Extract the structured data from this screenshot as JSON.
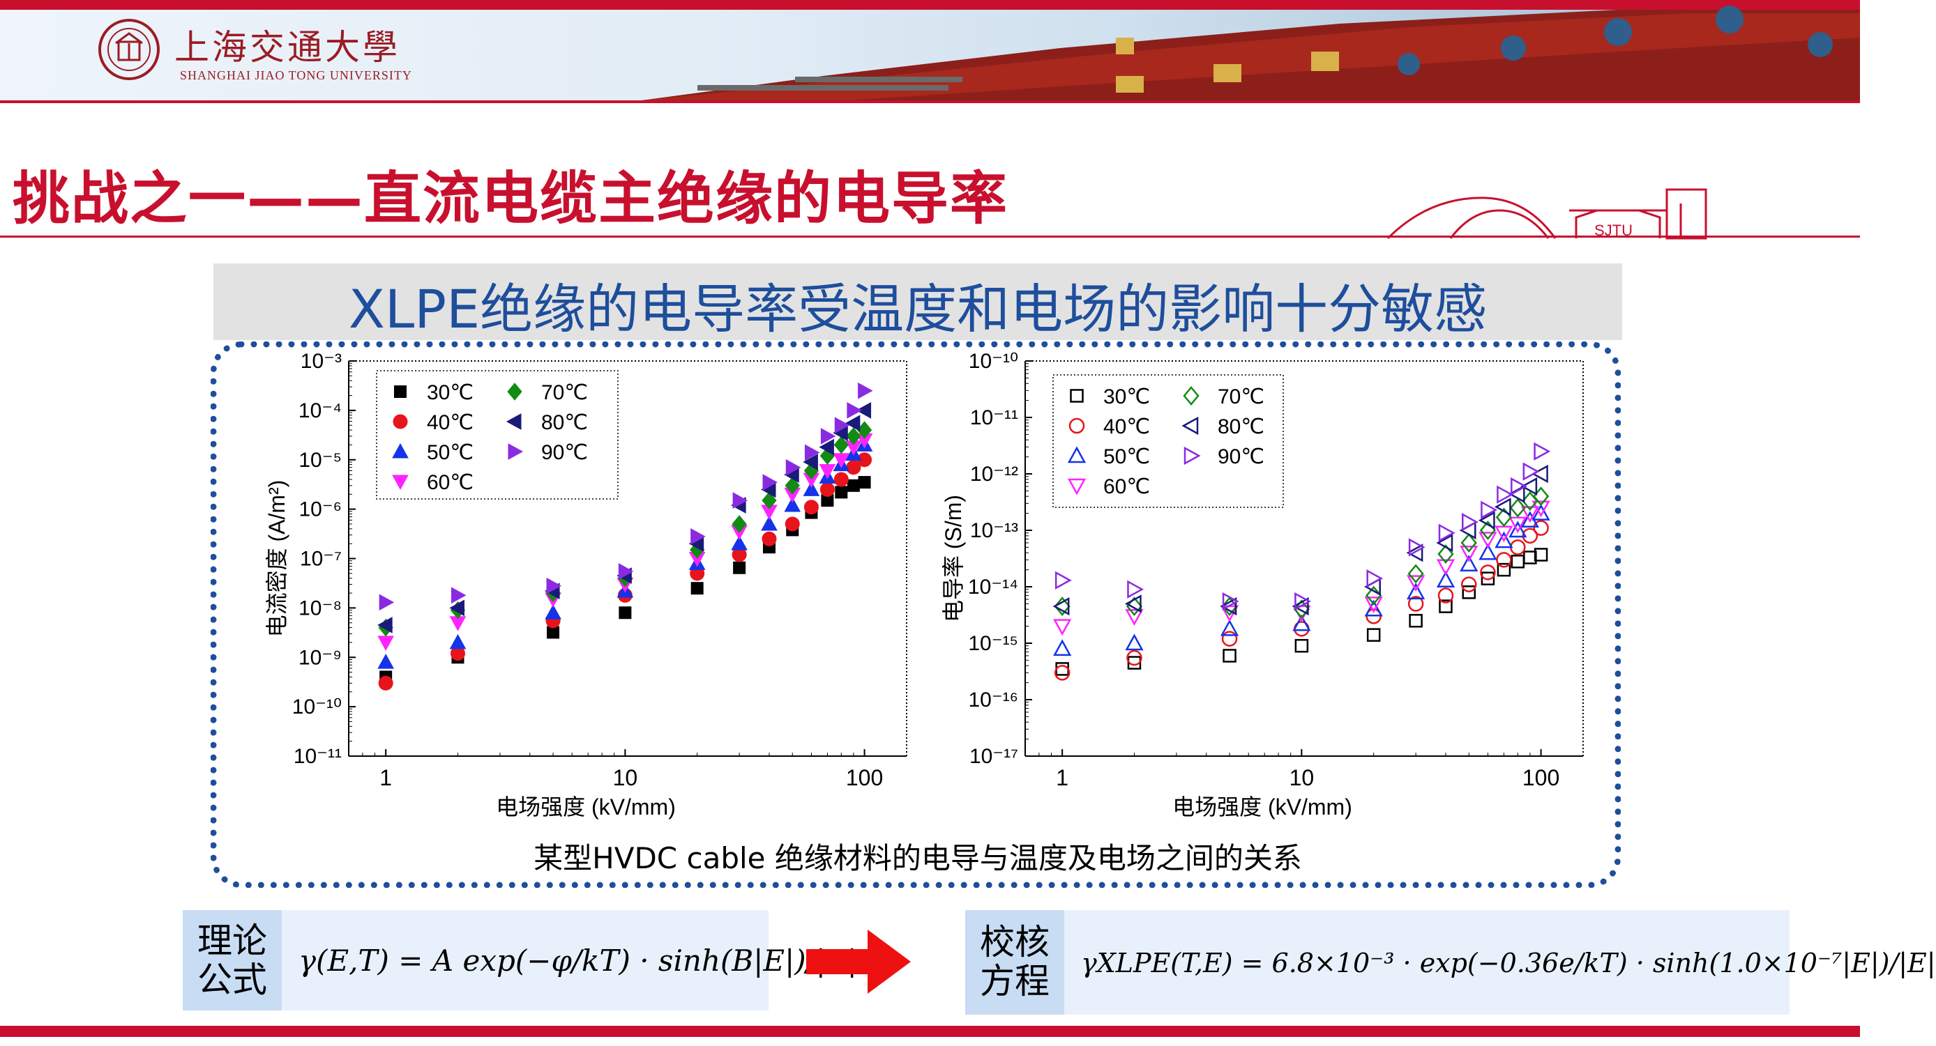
{
  "header": {
    "university_cn": "上海交通大學",
    "university_en": "SHANGHAI JIAO TONG UNIVERSITY",
    "gate_label": "SJTU"
  },
  "slide": {
    "title": "挑战之一——直流电缆主绝缘的电导率",
    "subtitle": "XLPE绝缘的电导率受温度和电场的影响十分敏感",
    "caption": "某型HVDC cable 绝缘材料的电导与温度及电场之间的关系"
  },
  "formulas": {
    "theory_label": "理论公式",
    "theory": "γ(E,T) = A exp(−φ/kT) · sinh(B|E|)/|E|",
    "fit_label": "校核方程",
    "fit": "γXLPE(T,E) = 6.8×10⁻³ · exp(−0.36e/kT) · sinh(1.0×10⁻⁷|E|)/|E|"
  },
  "colors": {
    "accent_red": "#c8102e",
    "accent_blue": "#1e4e9c"
  },
  "chart_data": [
    {
      "type": "scatter",
      "title": "",
      "xlabel": "电场强度 (kV/mm)",
      "ylabel": "电流密度 (A/m²)",
      "xscale": "log",
      "yscale": "log",
      "xlim": [
        0.7,
        150
      ],
      "ylim": [
        1e-11,
        0.001
      ],
      "xticks": [
        "1",
        "10",
        "100"
      ],
      "yticks": [
        "10⁻¹¹",
        "10⁻¹⁰",
        "10⁻⁹",
        "10⁻⁸",
        "10⁻⁷",
        "10⁻⁶",
        "10⁻⁵",
        "10⁻⁴",
        "10⁻³"
      ],
      "legend": "top-left",
      "filled": true,
      "x": [
        1,
        2,
        5,
        10,
        20,
        30,
        40,
        50,
        60,
        70,
        80,
        90,
        100
      ],
      "series": [
        {
          "name": "30℃",
          "color": "#000000",
          "marker": "square",
          "values": [
            4e-10,
            1e-09,
            3.2e-09,
            8e-09,
            2.5e-08,
            6.5e-08,
            1.7e-07,
            3.8e-07,
            8.5e-07,
            1.5e-06,
            2.2e-06,
            3e-06,
            3.5e-06
          ]
        },
        {
          "name": "40℃",
          "color": "#e8141b",
          "marker": "circle",
          "values": [
            3e-10,
            1.2e-09,
            5.5e-09,
            1.8e-08,
            5e-08,
            1.2e-07,
            2.5e-07,
            5e-07,
            1.1e-06,
            2.5e-06,
            4e-06,
            7e-06,
            1e-05
          ]
        },
        {
          "name": "50℃",
          "color": "#1533e8",
          "marker": "triangle-up",
          "values": [
            8e-10,
            2e-09,
            8e-09,
            2.2e-08,
            8e-08,
            2e-07,
            5e-07,
            1.2e-06,
            2.5e-06,
            4.5e-06,
            8e-06,
            1.3e-05,
            2e-05
          ]
        },
        {
          "name": "60℃",
          "color": "#ff24ff",
          "marker": "triangle-down",
          "values": [
            2e-09,
            5e-09,
            1.5e-08,
            3e-08,
            1e-07,
            3.5e-07,
            9e-07,
            2e-06,
            4e-06,
            6e-06,
            1e-05,
            1.8e-05,
            2.5e-05
          ]
        },
        {
          "name": "70℃",
          "color": "#138a13",
          "marker": "diamond",
          "values": [
            4e-09,
            9e-09,
            2e-08,
            4e-08,
            1.5e-07,
            5e-07,
            1.5e-06,
            3e-06,
            6e-06,
            1.2e-05,
            2e-05,
            3e-05,
            4e-05
          ]
        },
        {
          "name": "80℃",
          "color": "#1a1a7a",
          "marker": "triangle-left",
          "values": [
            4.5e-09,
            1e-08,
            2.2e-08,
            4.5e-08,
            2e-07,
            1.2e-06,
            2.5e-06,
            5e-06,
            9e-06,
            1.8e-05,
            3.5e-05,
            5.5e-05,
            0.0001
          ]
        },
        {
          "name": "90℃",
          "color": "#8a2be2",
          "marker": "triangle-right",
          "values": [
            1.3e-08,
            1.8e-08,
            2.8e-08,
            5.5e-08,
            2.8e-07,
            1.5e-06,
            3.5e-06,
            7e-06,
            1.4e-05,
            3e-05,
            5e-05,
            0.0001,
            0.00025
          ]
        }
      ]
    },
    {
      "type": "scatter",
      "title": "",
      "xlabel": "电场强度 (kV/mm)",
      "ylabel": "电导率 (S/m)",
      "xscale": "log",
      "yscale": "log",
      "xlim": [
        0.7,
        150
      ],
      "ylim": [
        1e-17,
        1e-10
      ],
      "xticks": [
        "1",
        "10",
        "100"
      ],
      "yticks": [
        "10⁻¹⁷",
        "10⁻¹⁶",
        "10⁻¹⁵",
        "10⁻¹⁴",
        "10⁻¹³",
        "10⁻¹²",
        "10⁻¹¹",
        "10⁻¹⁰"
      ],
      "legend": "top-left",
      "filled": false,
      "x": [
        1,
        2,
        5,
        10,
        20,
        30,
        40,
        50,
        60,
        70,
        80,
        90,
        100
      ],
      "series": [
        {
          "name": "30℃",
          "color": "#000000",
          "marker": "square",
          "values": [
            3.5e-16,
            4.5e-16,
            6e-16,
            9e-16,
            1.4e-15,
            2.5e-15,
            4.5e-15,
            8e-15,
            1.4e-14,
            2e-14,
            2.8e-14,
            3.3e-14,
            3.7e-14
          ]
        },
        {
          "name": "40℃",
          "color": "#e8141b",
          "marker": "circle",
          "values": [
            3e-16,
            5.5e-16,
            1.2e-15,
            1.8e-15,
            3e-15,
            5e-15,
            7e-15,
            1.1e-14,
            1.8e-14,
            3e-14,
            5e-14,
            8e-14,
            1.1e-13
          ]
        },
        {
          "name": "50℃",
          "color": "#1533e8",
          "marker": "triangle-up",
          "values": [
            8e-16,
            1e-15,
            1.8e-15,
            2.2e-15,
            4e-15,
            8e-15,
            1.3e-14,
            2.5e-14,
            4e-14,
            6.5e-14,
            1e-13,
            1.5e-13,
            2e-13
          ]
        },
        {
          "name": "60℃",
          "color": "#ff24ff",
          "marker": "triangle-down",
          "values": [
            2e-15,
            3e-15,
            3.5e-15,
            3.5e-15,
            5e-15,
            1.2e-14,
            2.3e-14,
            4e-14,
            7e-14,
            9e-14,
            1.3e-13,
            2e-13,
            2.5e-13
          ]
        },
        {
          "name": "70℃",
          "color": "#138a13",
          "marker": "diamond",
          "values": [
            4.5e-15,
            4.5e-15,
            4.5e-15,
            4e-15,
            7e-15,
            1.7e-14,
            3.8e-14,
            6e-14,
            1e-13,
            1.7e-13,
            2.5e-13,
            3.3e-13,
            4e-13
          ]
        },
        {
          "name": "80℃",
          "color": "#1a1a7a",
          "marker": "triangle-left",
          "values": [
            4.5e-15,
            5e-15,
            4.5e-15,
            4.5e-15,
            1e-14,
            4e-14,
            6e-14,
            1e-13,
            1.5e-13,
            2.6e-13,
            4.4e-13,
            6e-13,
            1e-12
          ]
        },
        {
          "name": "90℃",
          "color": "#8a2be2",
          "marker": "triangle-right",
          "values": [
            1.3e-14,
            9e-15,
            5.5e-15,
            5.5e-15,
            1.4e-14,
            5e-14,
            9e-14,
            1.4e-13,
            2.3e-13,
            4.3e-13,
            6e-13,
            1.1e-12,
            2.5e-12
          ]
        }
      ]
    }
  ]
}
